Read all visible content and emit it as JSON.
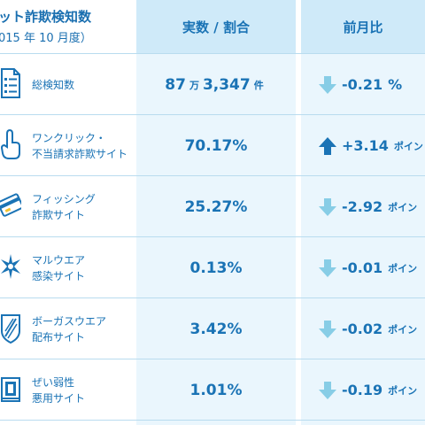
{
  "header": {
    "title_line1": "ット詐欺検知数",
    "title_line2": "015 年 10 月度）",
    "col_ratio": "実数 / 割合",
    "col_prev": "前月比"
  },
  "rows": [
    {
      "icon": "document-list-icon",
      "label_lines": [
        "総検知数"
      ],
      "value_main": "87",
      "value_unit": "万",
      "value_rest": "3,347",
      "value_suffix": "件",
      "trend": "down",
      "change": "-0.21",
      "change_unit": "%"
    },
    {
      "icon": "hand-cursor-icon",
      "label_lines": [
        "ワンクリック・",
        "不当請求詐欺サイト"
      ],
      "value_main": "70.17%",
      "trend": "up",
      "change": "+3.14",
      "change_unit": "ポイン"
    },
    {
      "icon": "credit-card-icon",
      "label_lines": [
        "フィッシング",
        "詐欺サイト"
      ],
      "value_main": "25.27%",
      "trend": "down",
      "change": "-2.92",
      "change_unit": "ポイン"
    },
    {
      "icon": "malware-star-icon",
      "label_lines": [
        "マルウエア",
        "感染サイト"
      ],
      "value_main": "0.13%",
      "trend": "down",
      "change": "-0.01",
      "change_unit": "ポイン"
    },
    {
      "icon": "shield-icon",
      "label_lines": [
        "ボーガスウエア",
        "配布サイト"
      ],
      "value_main": "3.42%",
      "trend": "down",
      "change": "-0.02",
      "change_unit": "ポイン"
    },
    {
      "icon": "vulnerable-window-icon",
      "label_lines": [
        "ぜい弱性",
        "悪用サイト"
      ],
      "value_main": "1.01%",
      "trend": "down",
      "change": "-0.19",
      "change_unit": "ポイン"
    }
  ],
  "colors": {
    "primary": "#1a73b5",
    "header_bg": "#cfeaf9",
    "col_bg": "#eaf6fd",
    "arrow_down": "#87cde6",
    "arrow_up": "#1a73b5"
  }
}
